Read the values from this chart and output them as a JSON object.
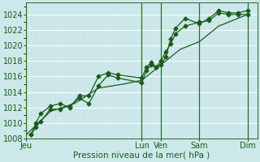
{
  "xlabel": "Pression niveau de la mer( hPa )",
  "bg_color": "#cce8ea",
  "grid_color": "#b8d8dc",
  "line_color": "#1a5c1a",
  "vline_color": "#2d6e2d",
  "ylim": [
    1008,
    1025.5
  ],
  "yticks": [
    1008,
    1010,
    1012,
    1014,
    1016,
    1018,
    1020,
    1022,
    1024
  ],
  "xlim": [
    0,
    96
  ],
  "day_labels": [
    "Jeu",
    "Lun",
    "Ven",
    "Sam",
    "Dim"
  ],
  "day_positions": [
    0,
    48,
    56,
    72,
    92
  ],
  "vline_positions": [
    0,
    48,
    56,
    72,
    92
  ],
  "line1_x": [
    2,
    4,
    6,
    10,
    14,
    18,
    22,
    26,
    30,
    34,
    38,
    48,
    50,
    52,
    54,
    56,
    58,
    60,
    62,
    66,
    72,
    76,
    80,
    84,
    88,
    92
  ],
  "line1_y": [
    1008.5,
    1009.5,
    1010.2,
    1011.8,
    1011.8,
    1012.2,
    1013.2,
    1012.5,
    1014.8,
    1016.2,
    1015.8,
    1015.2,
    1016.8,
    1017.5,
    1017.2,
    1018.0,
    1019.2,
    1020.2,
    1021.5,
    1022.5,
    1023.0,
    1023.2,
    1024.2,
    1024.0,
    1024.0,
    1024.0
  ],
  "line2_x": [
    2,
    4,
    6,
    10,
    14,
    18,
    22,
    26,
    30,
    34,
    38,
    48,
    50,
    52,
    54,
    56,
    58,
    60,
    62,
    66,
    72,
    76,
    80,
    84,
    88,
    92
  ],
  "line2_y": [
    1008.5,
    1010.0,
    1011.2,
    1012.2,
    1012.5,
    1012.0,
    1013.5,
    1013.5,
    1016.0,
    1016.5,
    1016.2,
    1015.8,
    1017.2,
    1017.8,
    1017.2,
    1017.5,
    1018.5,
    1020.8,
    1022.2,
    1023.5,
    1022.8,
    1023.5,
    1024.5,
    1024.2,
    1024.2,
    1024.5
  ],
  "line3_x": [
    0,
    10,
    20,
    30,
    40,
    48,
    56,
    64,
    72,
    80,
    92
  ],
  "line3_y": [
    1008.5,
    1011.5,
    1012.5,
    1014.5,
    1015.0,
    1015.5,
    1017.5,
    1019.5,
    1020.5,
    1022.5,
    1024.0
  ],
  "fontsize_label": 7.5,
  "fontsize_tick": 7
}
